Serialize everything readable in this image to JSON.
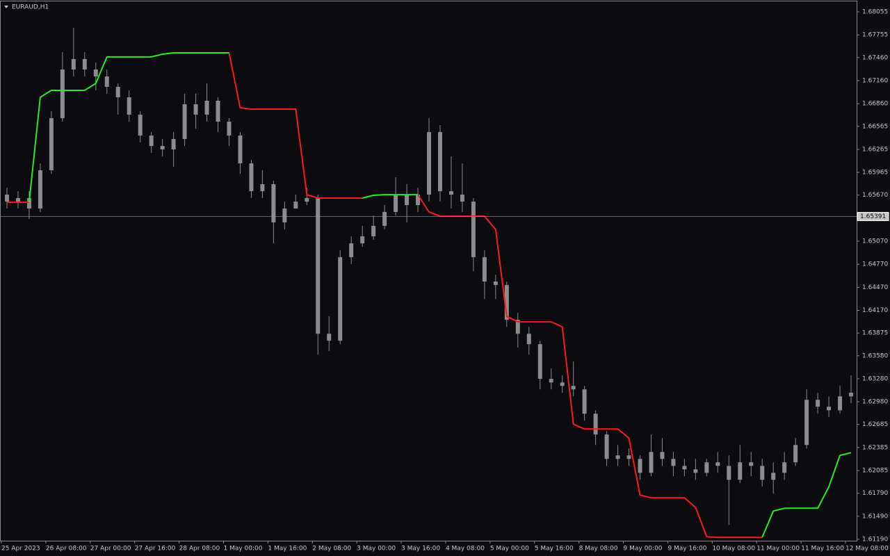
{
  "chart_data": {
    "type": "candlestick",
    "title": "EURAUD,H1",
    "categories": [
      "25 Apr 2023",
      null,
      null,
      null,
      "26 Apr 08:00",
      null,
      null,
      null,
      "27 Apr 00:00",
      null,
      null,
      null,
      "27 Apr 16:00",
      null,
      null,
      null,
      "28 Apr 08:00",
      null,
      null,
      null,
      "1 May 00:00",
      null,
      null,
      null,
      "1 May 16:00",
      null,
      null,
      null,
      "2 May 08:00",
      null,
      null,
      null,
      "3 May 00:00",
      null,
      null,
      null,
      "3 May 16:00",
      null,
      null,
      null,
      "4 May 08:00",
      null,
      null,
      null,
      "5 May 00:00",
      null,
      null,
      null,
      "5 May 16:00",
      null,
      null,
      null,
      "8 May 08:00",
      null,
      null,
      null,
      "9 May 00:00",
      null,
      null,
      null,
      "9 May 16:00",
      null,
      null,
      null,
      "10 May 08:00",
      null,
      null,
      null,
      "11 May 00:00",
      null,
      null,
      null,
      "11 May 16:00",
      null,
      null,
      null,
      "12 May 08:00"
    ],
    "open": [
      1.65676,
      1.65585,
      1.65631,
      1.65495,
      1.65993,
      1.66671,
      1.67305,
      1.67441,
      1.67305,
      1.67214,
      1.67079,
      1.66943,
      1.66717,
      1.66445,
      1.66309,
      1.66264,
      1.664,
      1.66852,
      1.66717,
      1.66898,
      1.66626,
      1.66445,
      1.66083,
      1.65721,
      1.65812,
      1.65314,
      1.65495,
      1.65585,
      1.65631,
      1.63866,
      1.63775,
      1.64861,
      1.65042,
      1.65133,
      1.65269,
      1.6545,
      1.65676,
      1.6554,
      1.65676,
      1.6649,
      1.65721,
      1.65676,
      1.65585,
      1.64861,
      1.64545,
      1.64499,
      1.64047,
      1.63866,
      1.6373,
      1.63278,
      1.63232,
      1.63187,
      1.63142,
      1.62825,
      1.62554,
      1.62237,
      1.62282,
      1.62237,
      1.62056,
      1.62327,
      1.62237,
      1.62146,
      1.62101,
      1.62056,
      1.62192,
      1.62146,
      1.61965,
      1.62192,
      1.62146,
      1.61965,
      1.62056,
      1.62192,
      1.62418,
      1.63006,
      1.62916,
      1.6287,
      1.63051
    ],
    "high": [
      1.65766,
      1.65721,
      1.65721,
      1.66083,
      1.66762,
      1.67531,
      1.67848,
      1.67531,
      1.67395,
      1.67305,
      1.67124,
      1.67033,
      1.66762,
      1.6649,
      1.664,
      1.6649,
      1.66988,
      1.66988,
      1.67124,
      1.66943,
      1.66671,
      1.6649,
      1.66128,
      1.65993,
      1.65857,
      1.65585,
      1.65676,
      1.65766,
      1.65676,
      1.64092,
      1.64952,
      1.65133,
      1.65269,
      1.65404,
      1.6554,
      1.65902,
      1.65812,
      1.65766,
      1.66671,
      1.66581,
      1.66174,
      1.66083,
      1.65631,
      1.64952,
      1.64635,
      1.64545,
      1.64137,
      1.63956,
      1.63775,
      1.63413,
      1.63323,
      1.63504,
      1.63187,
      1.6287,
      1.62599,
      1.62418,
      1.62373,
      1.62282,
      1.62554,
      1.62508,
      1.62327,
      1.62237,
      1.62237,
      1.62237,
      1.62327,
      1.62282,
      1.62418,
      1.62327,
      1.62237,
      1.62192,
      1.62327,
      1.62508,
      1.63142,
      1.63097,
      1.63051,
      1.63187,
      1.63323
    ],
    "low": [
      1.65495,
      1.65495,
      1.65359,
      1.6545,
      1.65947,
      1.66626,
      1.67214,
      1.67214,
      1.67033,
      1.66988,
      1.66717,
      1.66626,
      1.66355,
      1.66219,
      1.66174,
      1.66038,
      1.66309,
      1.66536,
      1.66626,
      1.6649,
      1.66309,
      1.65947,
      1.65631,
      1.65631,
      1.65042,
      1.65223,
      1.65495,
      1.6554,
      1.63594,
      1.6364,
      1.6373,
      1.64771,
      1.64997,
      1.65088,
      1.65223,
      1.65404,
      1.65314,
      1.6545,
      1.65585,
      1.65585,
      1.65495,
      1.6545,
      1.6468,
      1.64318,
      1.64318,
      1.63956,
      1.63685,
      1.63594,
      1.63142,
      1.63142,
      1.63097,
      1.63051,
      1.62735,
      1.62418,
      1.62146,
      1.62146,
      1.62146,
      1.61965,
      1.62011,
      1.62146,
      1.62011,
      1.62011,
      1.61965,
      1.62011,
      1.62056,
      1.61377,
      1.6192,
      1.62011,
      1.61875,
      1.61784,
      1.61965,
      1.62146,
      1.62373,
      1.62825,
      1.6278,
      1.62825,
      1.62961
    ],
    "close": [
      1.65585,
      1.65631,
      1.65495,
      1.65993,
      1.66671,
      1.67305,
      1.67441,
      1.67305,
      1.67214,
      1.67079,
      1.66943,
      1.66717,
      1.66445,
      1.66309,
      1.66264,
      1.664,
      1.66852,
      1.66717,
      1.66898,
      1.66626,
      1.66445,
      1.66083,
      1.65721,
      1.65812,
      1.65314,
      1.65495,
      1.65585,
      1.65631,
      1.63866,
      1.63775,
      1.64861,
      1.65042,
      1.65133,
      1.65269,
      1.6545,
      1.65676,
      1.6554,
      1.65676,
      1.6649,
      1.65721,
      1.65676,
      1.65585,
      1.64861,
      1.64545,
      1.64499,
      1.64047,
      1.63866,
      1.6373,
      1.63278,
      1.63232,
      1.63187,
      1.63142,
      1.62825,
      1.62554,
      1.62237,
      1.62282,
      1.62237,
      1.62056,
      1.62327,
      1.62237,
      1.62146,
      1.62101,
      1.62056,
      1.62192,
      1.62146,
      1.61965,
      1.62192,
      1.62146,
      1.61965,
      1.62056,
      1.62192,
      1.62418,
      1.63006,
      1.62916,
      1.6287,
      1.63051,
      1.63097
    ],
    "color": "#8c8c8c",
    "lines": [
      {
        "color": "#ff1a1a",
        "values": [
          1.65576,
          1.65576,
          1.65576,
          null,
          null,
          null,
          null,
          null,
          null,
          null,
          null,
          null,
          null,
          null,
          null,
          null,
          null,
          null,
          null,
          null,
          1.67522,
          1.66807,
          1.66789,
          1.66789,
          1.66789,
          1.66789,
          1.66789,
          1.65676,
          1.65631,
          1.65631,
          1.65631,
          1.65631,
          1.65631,
          null,
          null,
          null,
          null,
          1.65676,
          1.6545,
          1.65395,
          1.65395,
          1.65395,
          1.65395,
          1.65395,
          1.65223,
          1.64092,
          1.6402,
          1.6402,
          1.6402,
          1.6402,
          1.63956,
          1.62689,
          1.62626,
          1.62626,
          1.62626,
          1.62626,
          1.62508,
          1.61766,
          1.6173,
          1.6173,
          1.6173,
          1.6173,
          1.61604,
          1.61224,
          1.61215,
          1.61215,
          1.61215,
          1.61215,
          1.61215,
          null,
          null,
          null,
          null,
          null,
          null,
          null,
          null
        ]
      },
      {
        "color": "#22ee22",
        "values": [
          null,
          null,
          1.65576,
          1.66943,
          1.67033,
          1.67033,
          1.67033,
          1.67033,
          1.67124,
          1.67468,
          1.67468,
          1.67468,
          1.67468,
          1.67468,
          1.67504,
          1.67522,
          1.67522,
          1.67522,
          1.67522,
          1.67522,
          1.67522,
          null,
          null,
          null,
          null,
          null,
          null,
          null,
          null,
          null,
          null,
          null,
          1.65631,
          1.65667,
          1.65676,
          1.65676,
          1.65676,
          1.65676,
          null,
          null,
          null,
          null,
          null,
          null,
          null,
          null,
          null,
          null,
          null,
          null,
          null,
          null,
          null,
          null,
          null,
          null,
          null,
          null,
          null,
          null,
          null,
          null,
          null,
          null,
          null,
          null,
          null,
          null,
          1.61215,
          1.61558,
          1.61594,
          1.61594,
          1.61594,
          1.61594,
          1.61875,
          1.62282,
          1.62318
        ]
      }
    ],
    "current_price": 1.65391,
    "ylim": [
      1.61172,
      1.68191
    ],
    "yticks": [
      1.68055,
      1.67755,
      {
        "value": 1.6746,
        "label": "1.67460"
      },
      {
        "value": 1.6716,
        "label": "1.67160"
      },
      {
        "value": 1.6686,
        "label": "1.66860"
      },
      1.66565,
      1.66265,
      1.65965,
      {
        "value": 1.6567,
        "label": "1.65670"
      },
      {
        "value": 1.6507,
        "label": "1.65070"
      },
      {
        "value": 1.6477,
        "label": "1.64770"
      },
      {
        "value": 1.6447,
        "label": "1.64470"
      },
      {
        "value": 1.6417,
        "label": "1.64170"
      },
      1.63875,
      {
        "value": 1.6358,
        "label": "1.63580"
      },
      {
        "value": 1.6328,
        "label": "1.63280"
      },
      {
        "value": 1.6298,
        "label": "1.62980"
      },
      1.62685,
      1.62385,
      1.62085,
      {
        "value": 1.6179,
        "label": "1.61790"
      },
      {
        "value": 1.6149,
        "label": "1.61490"
      },
      {
        "value": 1.6119,
        "label": "1.61190"
      }
    ]
  }
}
